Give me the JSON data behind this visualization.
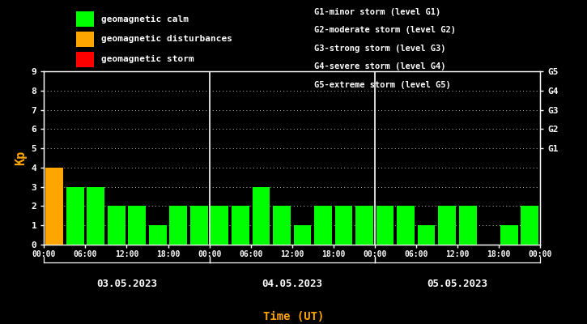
{
  "background_color": "#000000",
  "plot_bg_color": "#000000",
  "axis_color": "#ffffff",
  "tick_color": "#ffffff",
  "xlabel_color": "#ffa500",
  "ylabel_color": "#ffa500",
  "days": [
    "03.05.2023",
    "04.05.2023",
    "05.05.2023"
  ],
  "kp_values": [
    [
      4,
      3,
      3,
      2,
      2,
      1,
      2,
      2
    ],
    [
      2,
      2,
      3,
      2,
      1,
      2,
      2,
      2
    ],
    [
      2,
      2,
      1,
      2,
      2,
      0,
      1,
      2
    ]
  ],
  "bar_colors": [
    [
      "#ffa500",
      "#00ff00",
      "#00ff00",
      "#00ff00",
      "#00ff00",
      "#00ff00",
      "#00ff00",
      "#00ff00"
    ],
    [
      "#00ff00",
      "#00ff00",
      "#00ff00",
      "#00ff00",
      "#00ff00",
      "#00ff00",
      "#00ff00",
      "#00ff00"
    ],
    [
      "#00ff00",
      "#00ff00",
      "#00ff00",
      "#00ff00",
      "#00ff00",
      "#00ff00",
      "#00ff00",
      "#00ff00"
    ]
  ],
  "ylim": [
    0,
    9
  ],
  "yticks": [
    0,
    1,
    2,
    3,
    4,
    5,
    6,
    7,
    8,
    9
  ],
  "right_yticks": [
    5,
    6,
    7,
    8,
    9
  ],
  "right_ytick_labels": [
    "G1",
    "G2",
    "G3",
    "G4",
    "G5"
  ],
  "xlabel": "Time (UT)",
  "ylabel": "Kp",
  "legend_items": [
    {
      "label": "geomagnetic calm",
      "color": "#00ff00"
    },
    {
      "label": "geomagnetic disturbances",
      "color": "#ffa500"
    },
    {
      "label": "geomagnetic storm",
      "color": "#ff0000"
    }
  ],
  "right_legend_lines": [
    "G1-minor storm (level G1)",
    "G2-moderate storm (level G2)",
    "G3-strong storm (level G3)",
    "G4-severe storm (level G4)",
    "G5-extreme storm (level G5)"
  ]
}
